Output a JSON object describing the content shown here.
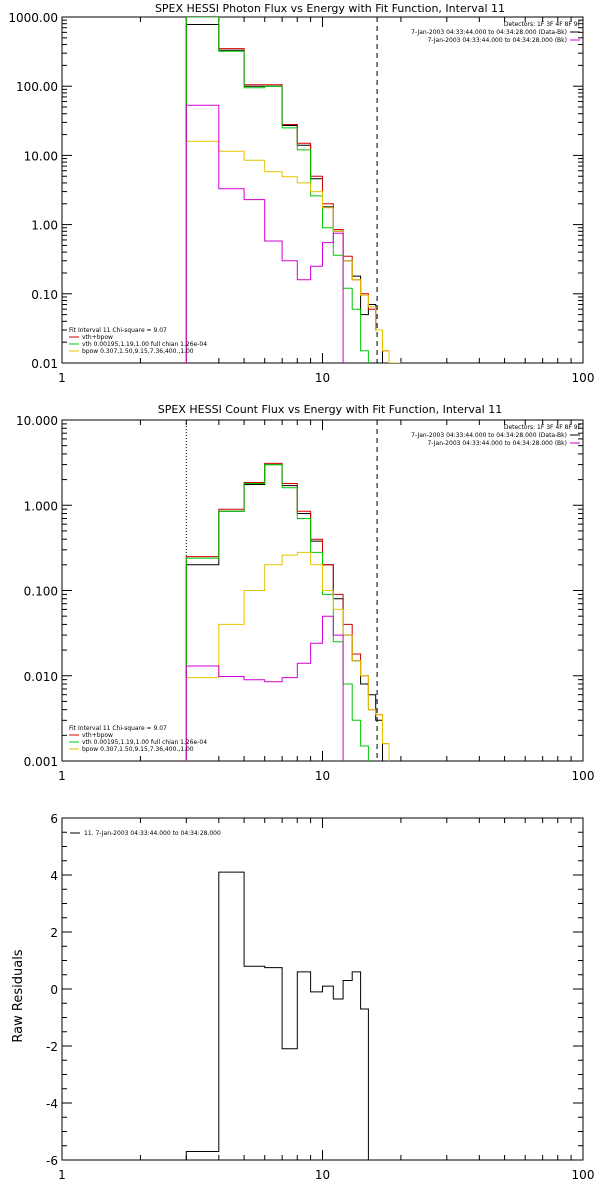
{
  "colors": {
    "data": "#000000",
    "total": "#d40000",
    "vth": "#00c800",
    "bpow": "#e6c300",
    "bk": "#d200d2",
    "axis": "#000000"
  },
  "chart_data": [
    {
      "type": "line",
      "title": "SPEX HESSI Photon Flux vs Energy with Fit Function, Interval 11",
      "xscale": "log",
      "yscale": "log",
      "xlim": [
        1,
        100
      ],
      "ylim": [
        0.01,
        1000
      ],
      "x_ticks": [
        "1",
        "10",
        "100"
      ],
      "y_ticks": [
        "0.01",
        "0.10",
        "1.00",
        "10.00",
        "100.00",
        "1000.00"
      ],
      "y_tick_values": [
        0.01,
        0.1,
        1,
        10,
        100,
        1000
      ],
      "fit_range": [
        3.0,
        16.2
      ],
      "legend_right": {
        "line1": "Detectors: 1F 3F 4F 8F 9F",
        "entries": [
          {
            "label": "7-Jan-2003 04:33:44.000 to 04:34:28.000 (Data-Bk)",
            "color": "data"
          },
          {
            "label": "7-Jan-2003 04:33:44.000 to 04:34:28.000 (Bk)",
            "color": "bk"
          }
        ]
      },
      "legend_left": {
        "header": "Fit Interval 11    Chi-square = 9.07",
        "entries": [
          {
            "label": "vth+bpow",
            "color": "total"
          },
          {
            "label": "vth 0.00195,1.19,1.00  full chian 1.26e-04",
            "color": "vth"
          },
          {
            "label": "bpow 0.307,1.50,9.15,7.36,400.,1.00",
            "color": "bpow"
          }
        ]
      },
      "edges": [
        3,
        4,
        5,
        6,
        7,
        8,
        9,
        10,
        11,
        12,
        13,
        14,
        15,
        16,
        17,
        18,
        20
      ],
      "series": [
        {
          "name": "Data-Bk",
          "color": "data",
          "values": [
            780,
            330,
            100,
            100,
            27,
            14,
            4.6,
            1.8,
            0.8,
            0.3,
            0.18,
            0.05,
            0.07,
            0.03,
            null,
            null
          ]
        },
        {
          "name": "vth+bpow",
          "color": "total",
          "values": [
            1000,
            350,
            105,
            105,
            28,
            15,
            5.0,
            2.0,
            0.85,
            0.35,
            0.16,
            0.1,
            0.06,
            0.03,
            0.015,
            0.01
          ]
        },
        {
          "name": "vth",
          "color": "vth",
          "values": [
            1000,
            320,
            95,
            100,
            25,
            12,
            2.6,
            0.9,
            0.36,
            0.12,
            0.06,
            0.015,
            null,
            null,
            null,
            null
          ]
        },
        {
          "name": "bpow",
          "color": "bpow",
          "values": [
            16,
            11.5,
            8.5,
            5.8,
            4.9,
            4.0,
            3.0,
            1.75,
            0.8,
            0.3,
            0.16,
            0.095,
            0.065,
            0.03,
            0.015,
            0.01
          ]
        },
        {
          "name": "Bk",
          "color": "bk",
          "values": [
            53,
            3.3,
            2.3,
            0.58,
            0.3,
            0.16,
            0.25,
            0.55,
            0.75,
            null,
            null,
            null,
            null,
            null,
            null,
            null
          ]
        }
      ]
    },
    {
      "type": "line",
      "title": "SPEX HESSI Count Flux vs Energy with Fit Function, Interval 11",
      "xscale": "log",
      "yscale": "log",
      "xlim": [
        1,
        100
      ],
      "ylim": [
        0.001,
        10
      ],
      "x_ticks": [
        "1",
        "10",
        "100"
      ],
      "y_ticks": [
        "0.001",
        "0.010",
        "0.100",
        "1.000",
        "10.000"
      ],
      "y_tick_values": [
        0.001,
        0.01,
        0.1,
        1,
        10
      ],
      "fit_range": [
        3.0,
        16.2
      ],
      "legend_right": {
        "line1": "Detectors: 1F 3F 4F 8F 9F",
        "entries": [
          {
            "label": "7-Jan-2003 04:33:44.000 to 04:34:28.000 (Data-Bk)",
            "color": "data"
          },
          {
            "label": "7-Jan-2003 04:33:44.000 to 04:34:28.000 (Bk)",
            "color": "bk"
          }
        ]
      },
      "legend_left": {
        "header": "Fit Interval 11    Chi-square = 9.07",
        "entries": [
          {
            "label": "vth+bpow",
            "color": "total"
          },
          {
            "label": "vth 0.00195,1.19,1.00  full chian 1.26e-04",
            "color": "vth"
          },
          {
            "label": "bpow 0.307,1.50,9.15,7.36,400.,1.00",
            "color": "bpow"
          }
        ]
      },
      "edges": [
        3,
        4,
        5,
        6,
        7,
        8,
        9,
        10,
        11,
        12,
        13,
        14,
        15,
        16,
        17,
        18,
        20
      ],
      "series": [
        {
          "name": "Data-Bk",
          "color": "data",
          "values": [
            0.2,
            0.85,
            1.75,
            3.0,
            1.7,
            0.8,
            0.38,
            0.2,
            0.08,
            0.03,
            0.015,
            0.008,
            0.006,
            0.003,
            null,
            null
          ]
        },
        {
          "name": "vth+bpow",
          "color": "total",
          "values": [
            0.25,
            0.9,
            1.85,
            3.1,
            1.8,
            0.85,
            0.4,
            0.2,
            0.09,
            0.04,
            0.018,
            0.01,
            0.004,
            0.0035,
            0.0016,
            null
          ]
        },
        {
          "name": "vth",
          "color": "vth",
          "values": [
            0.24,
            0.85,
            1.8,
            3.0,
            1.6,
            0.7,
            0.28,
            0.09,
            0.025,
            0.008,
            0.003,
            0.0015,
            null,
            null,
            null,
            null
          ]
        },
        {
          "name": "bpow",
          "color": "bpow",
          "values": [
            0.0095,
            0.04,
            0.1,
            0.2,
            0.26,
            0.28,
            0.2,
            0.1,
            0.06,
            0.03,
            0.015,
            0.01,
            0.004,
            0.0035,
            0.0016,
            null
          ]
        },
        {
          "name": "Bk",
          "color": "bk",
          "values": [
            0.013,
            0.0098,
            0.009,
            0.0085,
            0.0095,
            0.014,
            0.024,
            0.05,
            0.03,
            null,
            null,
            null,
            null,
            null,
            null,
            null
          ]
        }
      ]
    },
    {
      "type": "line",
      "xscale": "log",
      "xlim": [
        1,
        100
      ],
      "ylim": [
        -6,
        6
      ],
      "ylabel": "Raw Residuals",
      "x_ticks": [
        "1",
        "10",
        "100"
      ],
      "y_ticks": [
        "-6",
        "-4",
        "-2",
        "0",
        "2",
        "4",
        "6"
      ],
      "y_tick_values": [
        -6,
        -4,
        -2,
        0,
        2,
        4,
        6
      ],
      "legend": "11.  7-Jan-2003 04:33:44.000 to 04:34:28.000",
      "edges": [
        3,
        4,
        5,
        6,
        7,
        8,
        9,
        10,
        11,
        12,
        13,
        14,
        15,
        16
      ],
      "series": [
        {
          "name": "11.  7-Jan-2003 04:33:44.000 to 04:34:28.000",
          "color": "data",
          "values": [
            -5.7,
            4.1,
            0.8,
            0.75,
            -2.1,
            0.6,
            -0.1,
            0.1,
            -0.35,
            0.3,
            0.6,
            -0.7,
            null
          ]
        }
      ]
    }
  ]
}
